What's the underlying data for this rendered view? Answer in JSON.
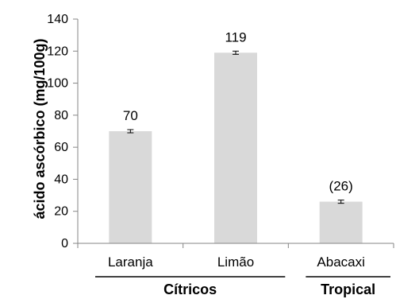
{
  "chart_data": {
    "type": "bar",
    "title": "",
    "ylabel": "ácido ascórbico (mg/100g)",
    "xlabel": "",
    "ylim": [
      0,
      140
    ],
    "yticks": [
      0,
      20,
      40,
      60,
      80,
      100,
      120,
      140
    ],
    "ytick_labels": [
      "0",
      "20",
      "40",
      "60",
      "80",
      "100",
      "120",
      "140"
    ],
    "categories": [
      "Laranja",
      "Limão",
      "Abacaxi"
    ],
    "values": [
      70,
      119,
      26
    ],
    "errors": [
      1,
      1,
      1
    ],
    "data_labels": [
      "70",
      "119",
      "(26)"
    ],
    "groups": [
      {
        "label": "Cítricos",
        "categories": [
          "Laranja",
          "Limão"
        ]
      },
      {
        "label": "Tropical",
        "categories": [
          "Abacaxi"
        ]
      }
    ],
    "bar_color": "#d9d9d9",
    "grid": false,
    "legend": "none"
  }
}
